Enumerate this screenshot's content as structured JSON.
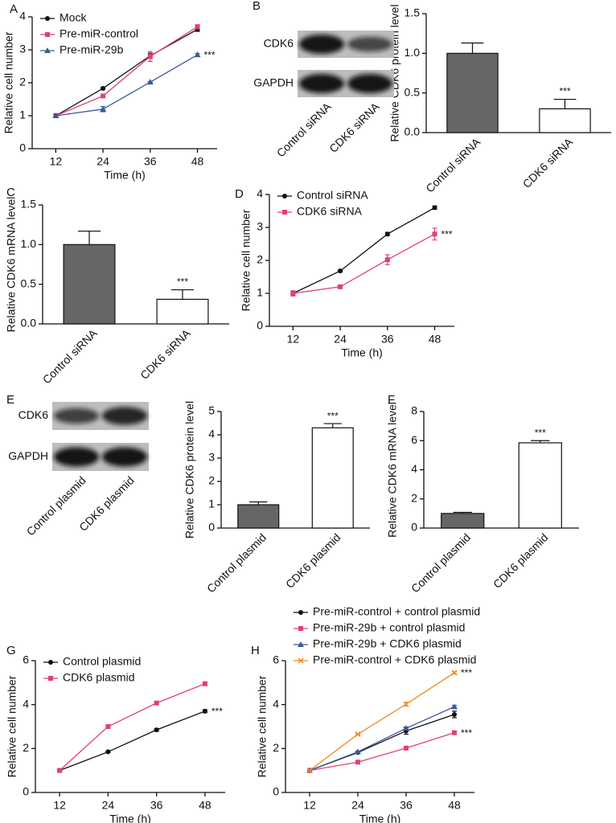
{
  "chart_data": [
    {
      "type": "line",
      "panel": "A",
      "ylabel": "Relative cell number",
      "xlabel": "Time (h)",
      "x": [
        12,
        24,
        36,
        48
      ],
      "xlim": [
        6,
        53
      ],
      "xticks": [
        12,
        24,
        36,
        48
      ],
      "ylim": [
        0,
        4
      ],
      "yticks": [
        0,
        1,
        2,
        3,
        4
      ],
      "legend": "upper left",
      "series": [
        {
          "name": "Mock",
          "color": "#111111",
          "marker": "circle",
          "values": [
            1.0,
            1.83,
            2.82,
            3.62
          ],
          "errors": [
            0.05,
            0.03,
            0.08,
            0.06
          ]
        },
        {
          "name": "Pre-miR-control",
          "color": "#e0407a",
          "marker": "square",
          "values": [
            1.0,
            1.6,
            2.8,
            3.7
          ],
          "errors": [
            0.05,
            0.03,
            0.15,
            0.06
          ]
        },
        {
          "name": "Pre-miR-29b",
          "color": "#3a5a9a",
          "marker": "triangle",
          "values": [
            1.0,
            1.2,
            2.02,
            2.85
          ],
          "errors": [
            0.06,
            0.08,
            0.02,
            0.04
          ],
          "annotation": "***"
        }
      ]
    },
    {
      "type": "bar",
      "ylabel": "Relative CDK6 protein level",
      "categories": [
        "Control siRNA",
        "CDK6 siRNA"
      ],
      "values": [
        1.0,
        0.3
      ],
      "errors": [
        0.13,
        0.12
      ],
      "annotations": [
        null,
        "***"
      ],
      "colors": [
        "#666666",
        "#ffffff"
      ],
      "ylim": [
        0,
        1.5
      ],
      "yticks": [
        {
          "value": 0,
          "label": "0.0"
        },
        0.5,
        {
          "value": 1,
          "label": "1.0"
        },
        1.5
      ]
    },
    {
      "type": "bar",
      "panel": "C",
      "ylabel": "Relative CDK6 mRNA level",
      "categories": [
        "Control siRNA",
        "CDK6 siRNA"
      ],
      "values": [
        1.0,
        0.31
      ],
      "errors": [
        0.17,
        0.12
      ],
      "annotations": [
        null,
        "***"
      ],
      "colors": [
        "#666666",
        "#ffffff"
      ],
      "ylim": [
        0,
        1.5
      ],
      "yticks": [
        {
          "value": 0,
          "label": "0.0"
        },
        0.5,
        {
          "value": 1,
          "label": "1.0"
        },
        1.5
      ]
    },
    {
      "type": "line",
      "panel": "D",
      "ylabel": "Relative cell number",
      "xlabel": "Time (h)",
      "x": [
        12,
        24,
        36,
        48
      ],
      "xlim": [
        6,
        53
      ],
      "xticks": [
        12,
        24,
        36,
        48
      ],
      "ylim": [
        0,
        4
      ],
      "yticks": [
        0,
        1,
        2,
        3,
        4
      ],
      "legend": "upper left",
      "series": [
        {
          "name": "Control siRNA",
          "color": "#111111",
          "marker": "circle",
          "values": [
            1.0,
            1.68,
            2.8,
            3.6
          ],
          "errors": [
            0.04,
            0.03,
            0.05,
            0.05
          ]
        },
        {
          "name": "CDK6 siRNA",
          "color": "#e0407a",
          "marker": "square",
          "values": [
            1.0,
            1.2,
            2.02,
            2.8
          ],
          "errors": [
            0.08,
            0.03,
            0.15,
            0.18
          ],
          "annotation": "***"
        }
      ]
    },
    {
      "type": "bar",
      "ylabel": "Relative CDK6 protein level",
      "categories": [
        "Control plasmid",
        "CDK6 plasmid"
      ],
      "values": [
        1.0,
        4.3
      ],
      "errors": [
        0.12,
        0.18
      ],
      "annotations": [
        null,
        "***"
      ],
      "colors": [
        "#666666",
        "#ffffff"
      ],
      "ylim": [
        0,
        5
      ],
      "yticks": [
        0,
        1,
        2,
        3,
        4,
        5
      ]
    },
    {
      "type": "bar",
      "panel": "F",
      "ylabel": "Relative CDK6 mRNA level",
      "categories": [
        "Control plasmid",
        "CDK6 plasmid"
      ],
      "values": [
        1.0,
        5.85
      ],
      "errors": [
        0.08,
        0.15
      ],
      "annotations": [
        null,
        "***"
      ],
      "colors": [
        "#666666",
        "#ffffff"
      ],
      "ylim": [
        0,
        8
      ],
      "yticks": [
        0,
        2,
        4,
        6,
        8
      ]
    },
    {
      "type": "line",
      "panel": "G",
      "ylabel": "Relative cell number",
      "xlabel": "Time (h)",
      "x": [
        12,
        24,
        36,
        48
      ],
      "xlim": [
        6,
        53
      ],
      "xticks": [
        12,
        24,
        36,
        48
      ],
      "ylim": [
        0,
        6
      ],
      "yticks": [
        0,
        2,
        4,
        6
      ],
      "legend": "upper left",
      "series": [
        {
          "name": "Control plasmid",
          "color": "#111111",
          "marker": "circle",
          "values": [
            1.0,
            1.85,
            2.85,
            3.7
          ],
          "errors": [
            0.05,
            0.03,
            0.06,
            0.07
          ],
          "annotation": "***"
        },
        {
          "name": "CDK6 plasmid",
          "color": "#e0407a",
          "marker": "square",
          "values": [
            1.0,
            3.0,
            4.07,
            4.95
          ],
          "errors": [
            0.05,
            0.04,
            0.08,
            0.08
          ]
        }
      ]
    },
    {
      "type": "line",
      "panel": "H",
      "ylabel": "Relative cell number",
      "xlabel": "Time (h)",
      "x": [
        12,
        24,
        36,
        48
      ],
      "xlim": [
        6,
        53
      ],
      "xticks": [
        12,
        24,
        36,
        48
      ],
      "ylim": [
        0,
        6
      ],
      "yticks": [
        0,
        2,
        4,
        6
      ],
      "legend": "above",
      "series": [
        {
          "name": "Pre-miR-control + control plasmid",
          "color": "#111111",
          "marker": "circle",
          "values": [
            1.0,
            1.82,
            2.8,
            3.55
          ],
          "errors": [
            0.05,
            0.04,
            0.15,
            0.15
          ]
        },
        {
          "name": "Pre-miR-29b + control plasmid",
          "color": "#e0407a",
          "marker": "square",
          "values": [
            1.0,
            1.38,
            2.02,
            2.72
          ],
          "errors": [
            0.05,
            0.03,
            0.06,
            0.05
          ],
          "annotation": "***"
        },
        {
          "name": "Pre-miR-29b + CDK6 plasmid",
          "color": "#3a5a9a",
          "marker": "triangle",
          "values": [
            1.0,
            1.85,
            2.92,
            3.9
          ],
          "errors": [
            0.05,
            0.03,
            0.06,
            0.06
          ]
        },
        {
          "name": "Pre-miR-control + CDK6 plasmid",
          "color": "#f28a1e",
          "marker": "cross",
          "values": [
            1.0,
            2.65,
            4.02,
            5.45
          ],
          "errors": [
            0.04,
            0.03,
            0.08,
            0.05
          ],
          "annotation": "***"
        }
      ]
    }
  ],
  "blots": [
    {
      "panel": "B",
      "rows": [
        "CDK6",
        "GAPDH"
      ],
      "lanes": [
        "Control siRNA",
        "CDK6 siRNA"
      ]
    },
    {
      "panel": "E",
      "rows": [
        "CDK6",
        "GAPDH"
      ],
      "lanes": [
        "Control plasmid",
        "CDK6 plasmid"
      ]
    }
  ]
}
